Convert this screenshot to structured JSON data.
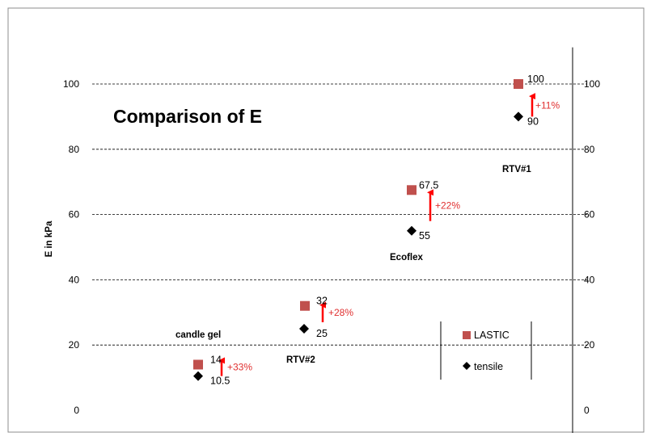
{
  "chart_data": {
    "type": "scatter",
    "title": "Comparison of E",
    "ylabel": "E in kPa",
    "ylim": [
      0,
      110
    ],
    "yticks": [
      0,
      20,
      40,
      60,
      80,
      100
    ],
    "grid": true,
    "legend_position": "bottom-right",
    "series": [
      {
        "name": "LASTIC",
        "marker": "square",
        "color": "#c0504d",
        "points": [
          {
            "material": "candle gel",
            "value": 14,
            "label": "14"
          },
          {
            "material": "RTV#2",
            "value": 32,
            "label": "32"
          },
          {
            "material": "Ecoflex",
            "value": 67.5,
            "label": "67.5"
          },
          {
            "material": "RTV#1",
            "value": 100,
            "label": "100"
          }
        ]
      },
      {
        "name": "tensile",
        "marker": "diamond",
        "color": "#000000",
        "points": [
          {
            "material": "candle gel",
            "value": 10.5,
            "label": "10.5"
          },
          {
            "material": "RTV#2",
            "value": 25,
            "label": "25"
          },
          {
            "material": "Ecoflex",
            "value": 55,
            "label": "55"
          },
          {
            "material": "RTV#1",
            "value": 90,
            "label": "90"
          }
        ]
      }
    ],
    "annotations": [
      {
        "material": "candle gel",
        "from": 10.5,
        "to": 16,
        "text": "+33%",
        "color": "#ff0000"
      },
      {
        "material": "RTV#2",
        "from": 27,
        "to": 33,
        "text": "+28%",
        "color": "#ff0000"
      },
      {
        "material": "Ecoflex",
        "from": 58,
        "to": 67.5,
        "text": "+22%",
        "color": "#ff0000"
      },
      {
        "material": "RTV#1",
        "from": 90,
        "to": 97,
        "text": "+11%",
        "color": "#ff0000"
      }
    ],
    "category_labels": [
      "candle gel",
      "RTV#2",
      "Ecoflex",
      "RTV#1"
    ]
  }
}
